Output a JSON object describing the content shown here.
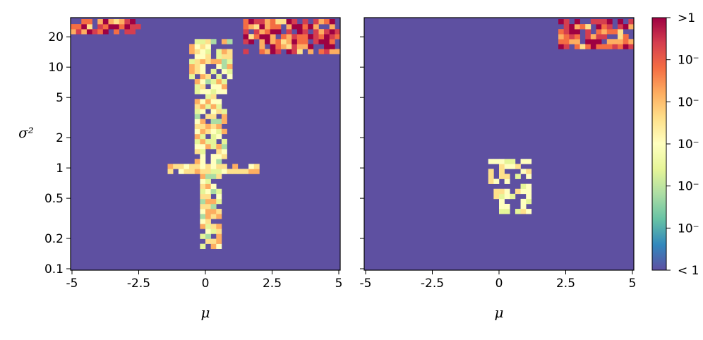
{
  "chart_data": [
    {
      "type": "heatmap",
      "title": "",
      "xlabel": "μ",
      "ylabel": "σ²",
      "xlim": [
        -5,
        5
      ],
      "ylim": [
        0.1,
        30
      ],
      "yscale": "log",
      "x_ticks": [
        -5,
        -2.5,
        0,
        2.5,
        5
      ],
      "x_tick_labels": [
        "-5",
        "-2.5",
        "0",
        "2.5",
        "5"
      ],
      "y_ticks": [
        0.1,
        0.2,
        0.5,
        1,
        2,
        5,
        10,
        20
      ],
      "y_tick_labels": [
        "0.1",
        "0.2",
        "0.5",
        "1",
        "2",
        "5",
        "10",
        "20"
      ],
      "background_color": "#5e50a1",
      "regions": [
        {
          "kind": "hot",
          "x": [
            -5,
            -2.5
          ],
          "y": [
            22,
            30
          ]
        },
        {
          "kind": "hot",
          "x": [
            1.3,
            5
          ],
          "y": [
            14,
            30
          ]
        },
        {
          "kind": "vertical_stripe",
          "x": [
            -0.5,
            1.1
          ],
          "y": [
            0.15,
            20
          ]
        },
        {
          "kind": "horizontal_stripe",
          "x": [
            -1.5,
            2.0
          ],
          "y": [
            0.9,
            1.15
          ]
        }
      ]
    },
    {
      "type": "heatmap",
      "title": "",
      "xlabel": "μ",
      "ylabel": "",
      "xlim": [
        -5,
        5
      ],
      "ylim": [
        0.1,
        30
      ],
      "yscale": "log",
      "x_ticks": [
        -5,
        -2.5,
        0,
        2.5,
        5
      ],
      "x_tick_labels": [
        "-5",
        "-2.5",
        "0",
        "2.5",
        "5"
      ],
      "background_color": "#5e50a1",
      "regions": [
        {
          "kind": "hot",
          "x": [
            2.3,
            5
          ],
          "y": [
            15,
            30
          ]
        },
        {
          "kind": "small_patch",
          "x": [
            -0.4,
            1.1
          ],
          "y": [
            0.35,
            1.25
          ]
        }
      ]
    }
  ],
  "colorbar": {
    "labels": [
      ">1",
      "10⁻",
      "10⁻",
      "10⁻",
      "10⁻",
      "10⁻",
      "< 1"
    ],
    "colors": [
      "#9e0142",
      "#d53e4f",
      "#f46d43",
      "#fdae61",
      "#fee08b",
      "#ffffbf",
      "#e6f598",
      "#abdda4",
      "#66c2a5",
      "#3288bd",
      "#5e4fa2"
    ]
  }
}
